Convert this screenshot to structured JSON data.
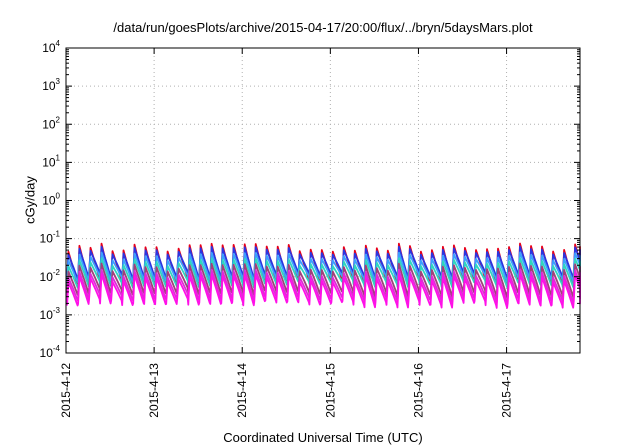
{
  "chart_data": {
    "type": "line",
    "title": "/data/run/goesPlots/archive/2015-04-17/20:00/flux/../bryn/5daysMars.plot",
    "xlabel": "Coordinated Universal Time (UTC)",
    "ylabel": "cGy/day",
    "y_scale": "log",
    "ylim": [
      0.0001,
      10000
    ],
    "xlim": [
      "2015-04-12T00:00",
      "2015-04-17T20:00"
    ],
    "grid": true,
    "legend": "none",
    "x_tick_labels": [
      "2015-4-12",
      "2015-4-13",
      "2015-4-14",
      "2015-4-15",
      "2015-4-16",
      "2015-4-17"
    ],
    "y_ticks": [
      {
        "base": "10",
        "exp": "-4"
      },
      {
        "base": "10",
        "exp": "-3"
      },
      {
        "base": "10",
        "exp": "-2"
      },
      {
        "base": "10",
        "exp": "-1"
      },
      {
        "base": "10",
        "exp": "0"
      },
      {
        "base": "10",
        "exp": "1"
      },
      {
        "base": "10",
        "exp": "2"
      },
      {
        "base": "10",
        "exp": "3"
      },
      {
        "base": "10",
        "exp": "4"
      }
    ],
    "pattern": {
      "cycle_hours": 3,
      "description": "sawtooth: sharp rise then gradual decay every ~3 hours"
    },
    "series": [
      {
        "color": "#e8001a",
        "peak": 0.06,
        "trough": 0.0075
      },
      {
        "color": "#2b35e0",
        "peak": 0.05,
        "trough": 0.011
      },
      {
        "color": "#3aa0ff",
        "peak": 0.035,
        "trough": 0.009
      },
      {
        "color": "#2fd6c0",
        "peak": 0.025,
        "trough": 0.0065
      },
      {
        "color": "#a0407a",
        "peak": 0.018,
        "trough": 0.0042
      },
      {
        "color": "#e02ad8",
        "peak": 0.0125,
        "trough": 0.003
      },
      {
        "color": "#ff10e8",
        "peak": 0.0095,
        "trough": 0.0022
      }
    ]
  }
}
